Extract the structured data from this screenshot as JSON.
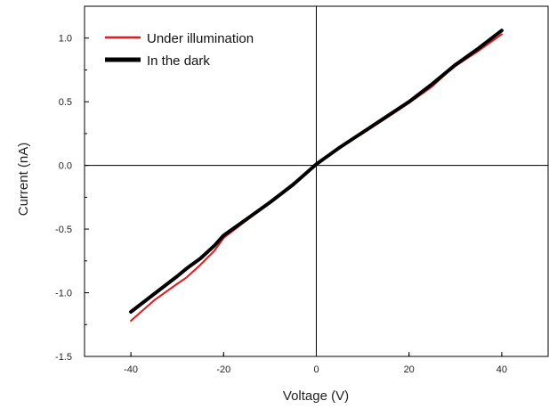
{
  "chart_data": {
    "type": "line",
    "title": "",
    "xlabel": "Voltage (V)",
    "ylabel": "Current (nA)",
    "xlim": [
      -50,
      50
    ],
    "ylim": [
      -1.5,
      1.25
    ],
    "xticks": [
      -40,
      -20,
      0,
      20,
      40
    ],
    "yticks": [
      -1.5,
      -1.0,
      -0.5,
      0.0,
      0.5,
      1.0
    ],
    "xtick_labels": [
      "-40",
      "-20",
      "0",
      "20",
      "40"
    ],
    "ytick_labels": [
      "-1.5",
      "-1.0",
      "-0.5",
      "0.0",
      "0.5",
      "1.0"
    ],
    "zero_lines": true,
    "grid": false,
    "legend_position": "top-left",
    "series": [
      {
        "name": "Under illumination",
        "color": "#e31a1c",
        "x": [
          -40,
          -35,
          -30,
          -28,
          -25,
          -22,
          -20,
          -15,
          -10,
          -5,
          0,
          5,
          10,
          15,
          20,
          25,
          28,
          30,
          35,
          40
        ],
        "y": [
          -1.22,
          -1.06,
          -0.93,
          -0.88,
          -0.78,
          -0.67,
          -0.57,
          -0.43,
          -0.29,
          -0.14,
          0.0,
          0.14,
          0.25,
          0.37,
          0.49,
          0.62,
          0.72,
          0.78,
          0.9,
          1.03
        ]
      },
      {
        "name": "In the dark",
        "color": "#000000",
        "x": [
          -40,
          -35,
          -30,
          -28,
          -25,
          -22,
          -20,
          -15,
          -10,
          -5,
          0,
          5,
          10,
          15,
          20,
          25,
          28,
          30,
          35,
          40
        ],
        "y": [
          -1.15,
          -1.01,
          -0.87,
          -0.81,
          -0.73,
          -0.63,
          -0.55,
          -0.42,
          -0.29,
          -0.15,
          0.01,
          0.14,
          0.26,
          0.38,
          0.5,
          0.64,
          0.73,
          0.79,
          0.92,
          1.06
        ]
      }
    ]
  }
}
